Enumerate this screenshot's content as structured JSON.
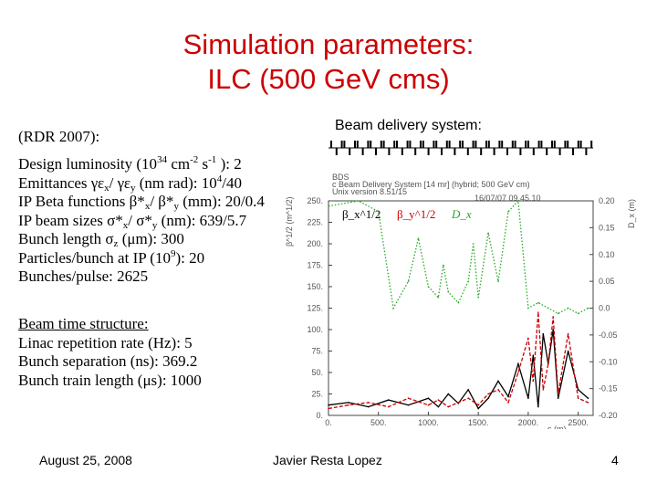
{
  "title": {
    "line1": "Simulation parameters:",
    "line2": "ILC (500 GeV cms)"
  },
  "left": {
    "rdr": "(RDR 2007):",
    "params": [
      {
        "pre": "Design luminosity (10",
        "sup": "34",
        "mid": " cm",
        "sup2": "-2",
        "mid2": " s",
        "sup3": "-1",
        "post": " ): 2"
      },
      {
        "text": "Emittances γε",
        "sub": "x",
        "text2": "/ γε",
        "sub2": "y",
        "text3": " (nm rad): 10",
        "sup": "4",
        "text4": "/40"
      },
      {
        "text": "IP Beta functions β*",
        "sub": "x",
        "text2": "/ β*",
        "sub2": "y",
        "text3": " (mm): 20/0.4"
      },
      {
        "text": "IP beam sizes σ*",
        "sub": "x",
        "text2": "/ σ*",
        "sub2": "y",
        "text3": " (nm): 639/5.7"
      },
      {
        "text": "Bunch length σ",
        "sub": "z",
        "text2": " (μm): 300"
      },
      {
        "text": "Particles/bunch at IP (10",
        "sup": "9",
        "text2": "): 20"
      },
      {
        "text": "Bunches/pulse: 2625"
      }
    ],
    "beam_heading": "Beam time structure:",
    "beam_lines": [
      "Linac repetition rate (Hz): 5",
      "Bunch separation (ns): 369.2",
      "Bunch train length (μs): 1000"
    ]
  },
  "bds_label": "Beam delivery system:",
  "footer": {
    "date": "August 25, 2008",
    "author": "Javier Resta Lopez",
    "page": "4"
  },
  "chart_data": {
    "type": "line",
    "header_lines": [
      "BDS",
      "c Beam Delivery System [14 mr] (hybrid; 500 GeV cm)",
      "Unix version 8.51/15",
      "16/07/07  09.45.10"
    ],
    "xlabel": "s (m)",
    "ylabel_left": "β^1/2 (m^1/2)",
    "ylabel_right": "D_x (m)",
    "xlim": [
      0,
      2650
    ],
    "ylim_left": [
      0,
      250
    ],
    "ylim_right": [
      -0.2,
      0.2
    ],
    "x_ticks": [
      "0.",
      "500.",
      "1000.",
      "1500.",
      "2000.",
      "2500."
    ],
    "y_ticks_left": [
      "0.",
      "25.",
      "50.",
      "75.",
      "100.",
      "125.",
      "150.",
      "175.",
      "200.",
      "225.",
      "250."
    ],
    "y_ticks_right": [
      "-0.20",
      "-0.15",
      "-0.10",
      "-0.05",
      "0.0",
      "0.05",
      "0.10",
      "0.15",
      "0.20"
    ],
    "legend": [
      "β_x^1/2",
      "β_y^1/2",
      "D_x"
    ],
    "colors": {
      "bx": "#000000",
      "by": "#cc0000",
      "dx": "#22aa22"
    },
    "series": [
      {
        "name": "β_x^1/2",
        "x": [
          0,
          200,
          400,
          600,
          800,
          1000,
          1100,
          1200,
          1300,
          1400,
          1500,
          1600,
          1700,
          1800,
          1900,
          2000,
          2050,
          2100,
          2150,
          2200,
          2250,
          2300,
          2400,
          2500,
          2600
        ],
        "y": [
          12,
          15,
          10,
          18,
          12,
          20,
          10,
          25,
          14,
          30,
          8,
          20,
          40,
          22,
          60,
          20,
          70,
          10,
          95,
          60,
          100,
          20,
          75,
          30,
          20
        ]
      },
      {
        "name": "β_y^1/2",
        "x": [
          0,
          200,
          400,
          600,
          800,
          1000,
          1100,
          1200,
          1300,
          1400,
          1500,
          1600,
          1700,
          1800,
          1900,
          2000,
          2050,
          2100,
          2150,
          2200,
          2250,
          2300,
          2400,
          2500,
          2600
        ],
        "y": [
          8,
          12,
          15,
          10,
          20,
          12,
          18,
          10,
          15,
          20,
          12,
          25,
          30,
          15,
          50,
          90,
          40,
          120,
          30,
          60,
          115,
          25,
          95,
          20,
          15
        ]
      },
      {
        "name": "D_x",
        "x": [
          0,
          300,
          500,
          650,
          800,
          900,
          1000,
          1100,
          1150,
          1200,
          1300,
          1400,
          1450,
          1500,
          1600,
          1700,
          1800,
          1900,
          2000,
          2100,
          2200,
          2300,
          2400,
          2500,
          2600
        ],
        "y": [
          0.19,
          0.2,
          0.18,
          0.0,
          0.05,
          0.13,
          0.04,
          0.02,
          0.08,
          0.03,
          0.01,
          0.05,
          0.12,
          0.02,
          0.14,
          0.05,
          0.18,
          0.2,
          0.0,
          0.01,
          0.0,
          -0.01,
          0.0,
          -0.01,
          0.0
        ]
      }
    ]
  }
}
